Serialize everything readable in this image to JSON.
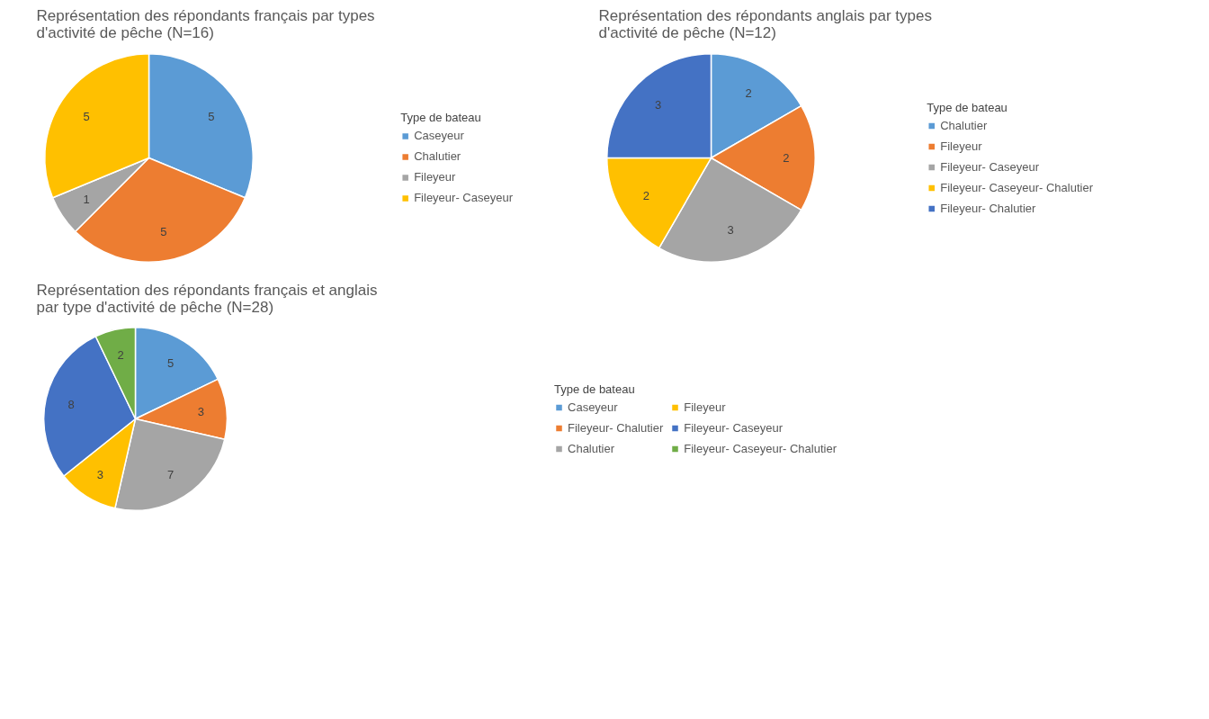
{
  "chart_data": [
    {
      "type": "pie",
      "title": "Représentation des répondants français par types d'activité de pêche (N=16)",
      "legend_title": "Type de bateau",
      "legend": "right",
      "data_labels": true,
      "categories": [
        "Caseyeur",
        "Chalutier",
        "Fileyeur",
        "Fileyeur- Caseyeur"
      ],
      "values": [
        5,
        5,
        1,
        5
      ],
      "colors": [
        "#5b9bd5",
        "#ed7d31",
        "#a5a5a5",
        "#ffc000"
      ]
    },
    {
      "type": "pie",
      "title": "Représentation des répondants anglais par types d'activité de pêche (N=12)",
      "legend_title": "Type de bateau",
      "legend": "right",
      "data_labels": true,
      "categories": [
        "Chalutier",
        "Fileyeur",
        "Fileyeur- Caseyeur",
        "Fileyeur- Caseyeur- Chalutier",
        "Fileyeur- Chalutier"
      ],
      "values": [
        2,
        2,
        3,
        2,
        3
      ],
      "colors": [
        "#5b9bd5",
        "#ed7d31",
        "#a5a5a5",
        "#ffc000",
        "#4472c4"
      ]
    },
    {
      "type": "pie",
      "title": "Représentation des répondants français et anglais par type d'activité de pêche (N=28)",
      "legend_title": "Type de bateau",
      "legend": "right",
      "data_labels": true,
      "categories": [
        "Caseyeur",
        "Fileyeur- Chalutier",
        "Chalutier",
        "Fileyeur",
        "Fileyeur- Caseyeur",
        "Fileyeur- Caseyeur- Chalutier"
      ],
      "values": [
        5,
        3,
        7,
        3,
        8,
        2
      ],
      "colors": [
        "#5b9bd5",
        "#ed7d31",
        "#a5a5a5",
        "#ffc000",
        "#4472c4",
        "#70ad47"
      ]
    }
  ]
}
